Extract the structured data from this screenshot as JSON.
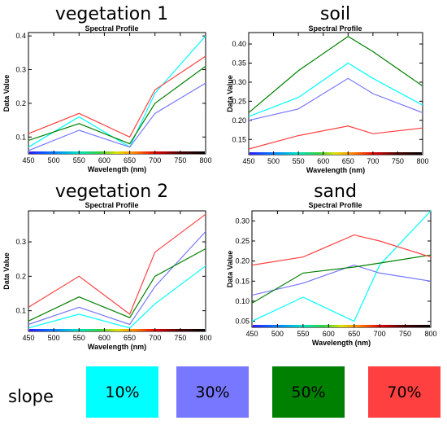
{
  "legend": {
    "title": "slope",
    "items": [
      {
        "label": "10%",
        "color": "#00ffff"
      },
      {
        "label": "30%",
        "color": "#7777ff"
      },
      {
        "label": "50%",
        "color": "#008000"
      },
      {
        "label": "70%",
        "color": "#ff4040"
      }
    ]
  },
  "chart_data": [
    {
      "type": "line",
      "title": "vegetation 1",
      "subtitle": "Spectral Profile",
      "xlabel": "Wavelength (nm)",
      "ylabel": "Data Value",
      "x": [
        450,
        550,
        650,
        700,
        800
      ],
      "xlim": [
        450,
        800
      ],
      "ylim": [
        0.05,
        0.41
      ],
      "xticks": [
        450,
        500,
        550,
        600,
        650,
        700,
        750,
        800
      ],
      "yticks": [
        0.1,
        0.2,
        0.3,
        0.4
      ],
      "ytick_labels": [
        "0.1",
        "0.2",
        "0.3",
        "0.4"
      ],
      "series": [
        {
          "color": "#00ffff",
          "values": [
            0.07,
            0.16,
            0.07,
            0.23,
            0.4
          ]
        },
        {
          "color": "#7777ff",
          "values": [
            0.06,
            0.12,
            0.07,
            0.17,
            0.26
          ]
        },
        {
          "color": "#008000",
          "values": [
            0.09,
            0.14,
            0.08,
            0.2,
            0.31
          ]
        },
        {
          "color": "#ff4040",
          "values": [
            0.11,
            0.17,
            0.1,
            0.24,
            0.34
          ]
        }
      ]
    },
    {
      "type": "line",
      "title": "soil",
      "subtitle": "Spectral Profile",
      "xlabel": "Wavelength (nm)",
      "ylabel": "Data Value",
      "x": [
        450,
        550,
        650,
        700,
        800
      ],
      "xlim": [
        450,
        800
      ],
      "ylim": [
        0.11,
        0.43
      ],
      "xticks": [
        450,
        500,
        550,
        600,
        650,
        700,
        750,
        800
      ],
      "yticks": [
        0.15,
        0.2,
        0.25,
        0.3,
        0.35,
        0.4
      ],
      "ytick_labels": [
        "0.15",
        "0.20",
        "0.25",
        "0.30",
        "0.35",
        "0.40"
      ],
      "series": [
        {
          "color": "#00ffff",
          "values": [
            0.21,
            0.26,
            0.35,
            0.31,
            0.24
          ]
        },
        {
          "color": "#7777ff",
          "values": [
            0.2,
            0.23,
            0.31,
            0.27,
            0.22
          ]
        },
        {
          "color": "#008000",
          "values": [
            0.22,
            0.33,
            0.42,
            0.38,
            0.29
          ]
        },
        {
          "color": "#ff4040",
          "values": [
            0.125,
            0.16,
            0.185,
            0.165,
            0.18
          ]
        }
      ]
    },
    {
      "type": "line",
      "title": "vegetation 2",
      "subtitle": "Spectral Profile",
      "xlabel": "Wavelength (nm)",
      "ylabel": "Data Value",
      "x": [
        450,
        550,
        650,
        700,
        800
      ],
      "xlim": [
        450,
        800
      ],
      "ylim": [
        0.04,
        0.39
      ],
      "xticks": [
        450,
        500,
        550,
        600,
        650,
        700,
        750,
        800
      ],
      "yticks": [
        0.1,
        0.2,
        0.3
      ],
      "ytick_labels": [
        "0.1",
        "0.2",
        "0.3"
      ],
      "series": [
        {
          "color": "#00ffff",
          "values": [
            0.05,
            0.09,
            0.05,
            0.12,
            0.23
          ]
        },
        {
          "color": "#7777ff",
          "values": [
            0.06,
            0.11,
            0.06,
            0.17,
            0.33
          ]
        },
        {
          "color": "#008000",
          "values": [
            0.07,
            0.14,
            0.08,
            0.2,
            0.28
          ]
        },
        {
          "color": "#ff4040",
          "values": [
            0.11,
            0.2,
            0.09,
            0.27,
            0.38
          ]
        }
      ]
    },
    {
      "type": "line",
      "title": "sand",
      "subtitle": "Spectral Profile",
      "xlabel": "Wavelength (nm)",
      "ylabel": "Data Value",
      "x": [
        450,
        550,
        650,
        700,
        800
      ],
      "xlim": [
        450,
        800
      ],
      "ylim": [
        0.035,
        0.325
      ],
      "xticks": [
        450,
        500,
        550,
        600,
        650,
        700,
        750,
        800
      ],
      "yticks": [
        0.05,
        0.1,
        0.15,
        0.2,
        0.25,
        0.3
      ],
      "ytick_labels": [
        "0.05",
        "0.10",
        "0.15",
        "0.20",
        "0.25",
        "0.30"
      ],
      "series": [
        {
          "color": "#00ffff",
          "values": [
            0.05,
            0.11,
            0.05,
            0.19,
            0.325
          ]
        },
        {
          "color": "#7777ff",
          "values": [
            0.115,
            0.145,
            0.19,
            0.17,
            0.15
          ]
        },
        {
          "color": "#008000",
          "values": [
            0.095,
            0.17,
            0.185,
            0.195,
            0.215
          ]
        },
        {
          "color": "#ff4040",
          "values": [
            0.19,
            0.21,
            0.265,
            0.25,
            0.21
          ]
        }
      ]
    }
  ]
}
